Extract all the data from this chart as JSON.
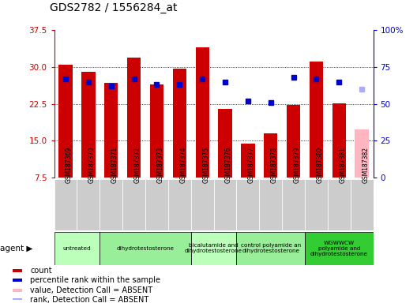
{
  "title": "GDS2782 / 1556284_at",
  "samples": [
    "GSM187369",
    "GSM187370",
    "GSM187371",
    "GSM187372",
    "GSM187373",
    "GSM187374",
    "GSM187375",
    "GSM187376",
    "GSM187377",
    "GSM187378",
    "GSM187379",
    "GSM187380",
    "GSM187381",
    "GSM187382"
  ],
  "bar_values": [
    30.5,
    29.0,
    26.7,
    32.0,
    26.4,
    29.7,
    34.0,
    21.5,
    14.4,
    16.5,
    22.3,
    31.2,
    22.6,
    17.2
  ],
  "bar_colors": [
    "#cc0000",
    "#cc0000",
    "#cc0000",
    "#cc0000",
    "#cc0000",
    "#cc0000",
    "#cc0000",
    "#cc0000",
    "#cc0000",
    "#cc0000",
    "#cc0000",
    "#cc0000",
    "#cc0000",
    "#ffb6c1"
  ],
  "rank_values": [
    67,
    65,
    62,
    67,
    63,
    63,
    67,
    65,
    52,
    51,
    68,
    67,
    65,
    60
  ],
  "rank_absent": [
    false,
    false,
    false,
    false,
    false,
    false,
    false,
    false,
    false,
    false,
    false,
    false,
    false,
    true
  ],
  "ylim_left": [
    7.5,
    37.5
  ],
  "ylim_right": [
    0,
    100
  ],
  "left_yticks": [
    7.5,
    15.0,
    22.5,
    30.0,
    37.5
  ],
  "right_yticks": [
    0,
    25,
    50,
    75,
    100
  ],
  "right_yticklabels": [
    "0",
    "25",
    "50",
    "75",
    "100%"
  ],
  "agents": [
    {
      "label": "untreated",
      "start": 0,
      "end": 2,
      "color": "#bbffbb"
    },
    {
      "label": "dihydrotestosterone",
      "start": 2,
      "end": 6,
      "color": "#99ee99"
    },
    {
      "label": "bicalutamide and\ndihydrotestosterone",
      "start": 6,
      "end": 8,
      "color": "#bbffbb"
    },
    {
      "label": "control polyamide an\ndihydrotestosterone",
      "start": 8,
      "end": 11,
      "color": "#99ee99"
    },
    {
      "label": "WGWWCW\npolyamide and\ndihydrotestosterone",
      "start": 11,
      "end": 14,
      "color": "#33cc33"
    }
  ],
  "legend_items": [
    {
      "label": "count",
      "color": "#cc0000"
    },
    {
      "label": "percentile rank within the sample",
      "color": "#0000cc"
    },
    {
      "label": "value, Detection Call = ABSENT",
      "color": "#ffb6c1"
    },
    {
      "label": "rank, Detection Call = ABSENT",
      "color": "#aaaaff"
    }
  ],
  "left_tick_color": "#cc0000",
  "right_tick_color": "#0000cc",
  "sample_bg": "#cccccc"
}
